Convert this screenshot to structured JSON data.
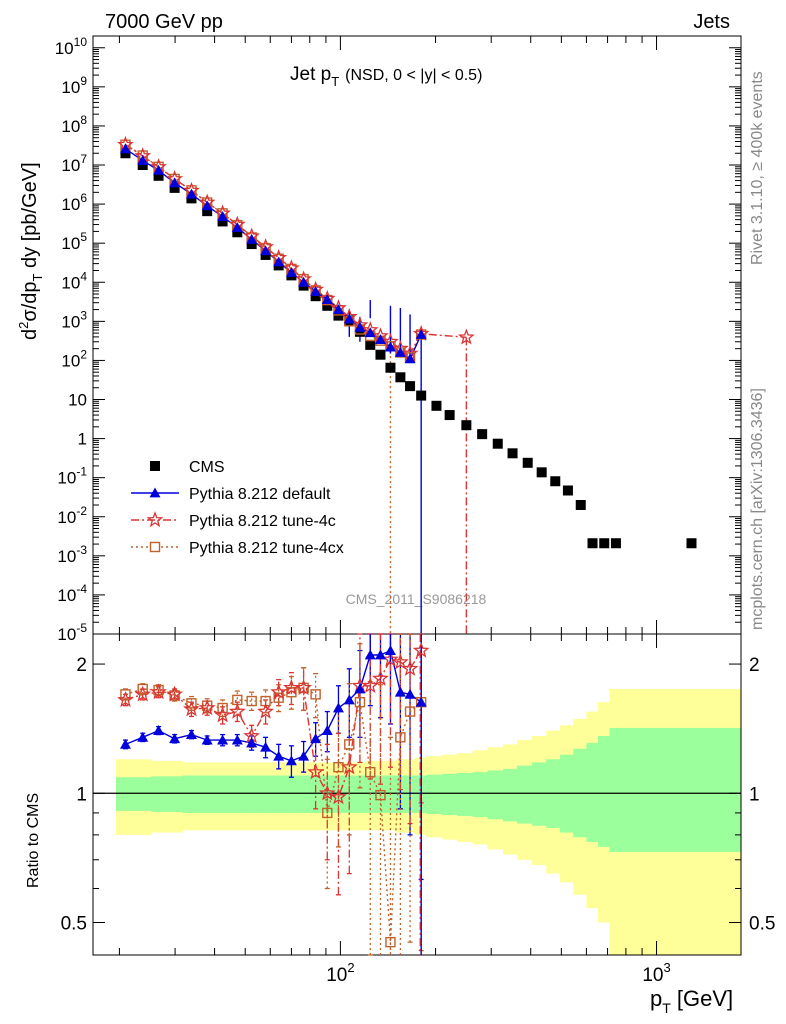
{
  "header": {
    "left": "7000 GeV pp",
    "right": "Jets"
  },
  "side_labels": {
    "rivet": "Rivet 3.1.10, ≥ 400k events",
    "mcplots": "mcplots.cern.ch [arXiv:1306.3436]"
  },
  "chart_data": [
    {
      "type": "scatter",
      "panel": "main",
      "title": "Jet p_T (NSD, 0 < |y| < 0.5)",
      "title_main": "Jet p",
      "title_sub": "T",
      "title_rest": "(NSD,   0 < |y| < 0.5)",
      "watermark": "CMS_2011_S9086218",
      "ylabel": "d²σ/dp_T dy [pb/GeV]",
      "xlabel": "p_T [GeV]",
      "xscale": "log",
      "yscale": "log",
      "xlim": [
        16.5,
        1850
      ],
      "ylim": [
        1e-05,
        20000000000.0
      ],
      "y_tick_labels": [
        "10^10",
        "10^9",
        "10^8",
        "10^7",
        "10^6",
        "10^5",
        "10^4",
        "10^3",
        "10^2",
        "10",
        "1",
        "10^-1",
        "10^-2",
        "10^-3",
        "10^-4",
        "10^-5"
      ],
      "x_tick_labels": [
        "10^2",
        "10^3"
      ],
      "legend_position": "lower-left",
      "series": [
        {
          "name": "CMS",
          "color": "#000000",
          "marker": "square",
          "x": [
            20.9,
            23.7,
            26.6,
            29.9,
            33.8,
            37.9,
            42.4,
            47.2,
            52.4,
            58.0,
            63.8,
            70.0,
            76.5,
            83.5,
            90.9,
            98.6,
            106.7,
            115.3,
            124.3,
            133.9,
            144.0,
            154.8,
            166.1,
            180.1,
            201.3,
            221.6,
            250.3,
            280.8,
            314.6,
            350.4,
            391.3,
            433.2,
            478.3,
            524.5,
            575.8,
            627.4,
            683.3,
            744.0,
            1290
          ],
          "y": [
            20000000.0,
            10000000.0,
            5300000.0,
            2600000.0,
            1400000.0,
            660000.0,
            360000.0,
            190000.0,
            95000.0,
            50000.0,
            27000.0,
            15000.0,
            8200.0,
            4400.0,
            2500.0,
            1400.0,
            1050.0,
            540.0,
            250.0,
            140.0,
            65.0,
            37.0,
            22.0,
            12.6,
            6.9,
            4.0,
            2.2,
            1.3,
            0.74,
            0.42,
            0.24,
            0.137,
            0.081,
            0.047,
            0.02,
            0.0021,
            0.0021,
            0.0021,
            0.0021
          ]
        },
        {
          "name": "Pythia 8.212 default",
          "color": "#0000dd",
          "marker": "triangle",
          "line": "solid",
          "x": [
            20.9,
            23.7,
            26.6,
            29.9,
            33.8,
            37.9,
            42.4,
            47.2,
            52.4,
            58.0,
            63.8,
            70.0,
            76.5,
            83.5,
            90.9,
            98.6,
            106.7,
            115.3,
            124.3,
            133.9,
            144.0,
            154.8,
            166.1,
            180.1
          ],
          "y": [
            26000000.0,
            13000000.0,
            7300000.0,
            3500000.0,
            1800000.0,
            900000.0,
            480000.0,
            250000.0,
            125000.0,
            64000.0,
            33000.0,
            17800.0,
            10000.0,
            5800.0,
            3600.0,
            2000.0,
            1150.0,
            700.0,
            510.0,
            340.0,
            220.0,
            160.0,
            110.0,
            460.0
          ],
          "yerr": [
            0,
            0,
            0,
            0,
            0,
            0,
            0,
            0,
            0,
            0,
            0,
            0,
            0,
            0,
            0,
            0,
            0,
            0,
            0,
            0,
            0,
            0,
            0,
            0
          ]
        },
        {
          "name": "Pythia 8.212 tune-4c",
          "color": "#dd3333",
          "marker": "star",
          "line": "dashdot",
          "x": [
            20.9,
            23.7,
            26.6,
            29.9,
            33.8,
            37.9,
            42.4,
            47.2,
            52.4,
            58.0,
            63.8,
            70.0,
            76.5,
            83.5,
            90.9,
            98.6,
            106.7,
            115.3,
            124.3,
            133.9,
            144.0,
            154.8,
            166.1,
            180.1,
            250.3
          ],
          "y": [
            33000000.0,
            17000000.0,
            8900000.0,
            4400000.0,
            2200000.0,
            1100000.0,
            580000.0,
            300000.0,
            150000.0,
            80000.0,
            42000.0,
            23000.0,
            12000.0,
            6500.0,
            3800.0,
            2200.0,
            1300.0,
            800.0,
            600.0,
            420.0,
            300.0,
            200.0,
            150.0,
            480.0,
            390.0
          ]
        },
        {
          "name": "Pythia 8.212 tune-4cx",
          "color": "#c0622a",
          "marker": "open-square",
          "line": "dotted",
          "x": [
            20.9,
            23.7,
            26.6,
            29.9,
            33.8,
            37.9,
            42.4,
            47.2,
            52.4,
            58.0,
            63.8,
            70.0,
            76.5,
            83.5,
            90.9,
            98.6,
            106.7,
            115.3,
            124.3,
            133.9,
            144.0,
            154.8,
            166.1,
            180.1
          ],
          "y": [
            33000000.0,
            17500000.0,
            9000000.0,
            4400000.0,
            2250000.0,
            1100000.0,
            580000.0,
            290000.0,
            140000.0,
            75000.0,
            40000.0,
            22000.0,
            12000.0,
            6200.0,
            3500.0,
            1900.0,
            1000.0,
            620.0,
            420.0,
            320.0,
            230.0,
            160.0,
            120.0,
            460.0
          ]
        }
      ]
    },
    {
      "type": "line",
      "panel": "ratio",
      "ylabel": "Ratio to CMS",
      "xlabel": "p_T [GeV]",
      "xscale": "log",
      "yscale": "log",
      "xlim": [
        16.5,
        1850
      ],
      "ylim": [
        0.42,
        2.35
      ],
      "y_tick_labels": [
        "2",
        "1",
        "0.5"
      ],
      "bands": {
        "x_edges": [
          19.5,
          22.3,
          25.2,
          28.2,
          31.6,
          35.8,
          40.0,
          44.8,
          49.7,
          55.1,
          60.8,
          66.9,
          73.2,
          79.9,
          87.2,
          94.7,
          102.6,
          110.9,
          119.7,
          129.0,
          138.9,
          149.2,
          160.3,
          172.0,
          187.0,
          210.0,
          234.0,
          262.0,
          292.0,
          327.0,
          362.0,
          404.0,
          448.0,
          495.0,
          545.0,
          600.0,
          653.0,
          710.0,
          782.0,
          1850.0
        ],
        "stat_lo": [
          0.91,
          0.91,
          0.905,
          0.905,
          0.9,
          0.9,
          0.9,
          0.9,
          0.9,
          0.9,
          0.9,
          0.9,
          0.9,
          0.9,
          0.9,
          0.9,
          0.9,
          0.9,
          0.9,
          0.9,
          0.9,
          0.9,
          0.9,
          0.9,
          0.895,
          0.89,
          0.885,
          0.88,
          0.87,
          0.86,
          0.85,
          0.84,
          0.83,
          0.81,
          0.79,
          0.77,
          0.75,
          0.73,
          0.73
        ],
        "stat_hi": [
          1.09,
          1.09,
          1.095,
          1.095,
          1.1,
          1.1,
          1.1,
          1.1,
          1.1,
          1.1,
          1.1,
          1.1,
          1.1,
          1.1,
          1.1,
          1.1,
          1.1,
          1.1,
          1.1,
          1.1,
          1.1,
          1.1,
          1.1,
          1.1,
          1.105,
          1.11,
          1.115,
          1.12,
          1.13,
          1.14,
          1.16,
          1.18,
          1.2,
          1.23,
          1.27,
          1.31,
          1.36,
          1.42,
          1.42
        ],
        "tot_lo": [
          0.8,
          0.8,
          0.81,
          0.81,
          0.82,
          0.82,
          0.82,
          0.82,
          0.82,
          0.82,
          0.82,
          0.82,
          0.82,
          0.82,
          0.82,
          0.82,
          0.82,
          0.82,
          0.82,
          0.82,
          0.82,
          0.81,
          0.81,
          0.8,
          0.79,
          0.78,
          0.77,
          0.76,
          0.74,
          0.72,
          0.7,
          0.68,
          0.65,
          0.62,
          0.58,
          0.54,
          0.5,
          0.42,
          0.42
        ],
        "tot_hi": [
          1.2,
          1.2,
          1.19,
          1.19,
          1.18,
          1.18,
          1.18,
          1.18,
          1.18,
          1.18,
          1.18,
          1.18,
          1.18,
          1.18,
          1.18,
          1.18,
          1.18,
          1.18,
          1.19,
          1.19,
          1.19,
          1.2,
          1.2,
          1.21,
          1.22,
          1.23,
          1.24,
          1.26,
          1.28,
          1.3,
          1.33,
          1.36,
          1.4,
          1.44,
          1.49,
          1.55,
          1.63,
          1.75,
          1.75
        ]
      },
      "series": [
        {
          "name": "Pythia 8.212 default",
          "color": "#0000dd",
          "x": [
            20.9,
            23.7,
            26.6,
            29.9,
            33.8,
            37.9,
            42.4,
            47.2,
            52.4,
            58.0,
            63.8,
            70.0,
            76.5,
            83.5,
            90.9,
            98.6,
            106.7,
            115.3,
            124.3,
            133.9,
            144.0,
            154.8,
            166.1,
            180.1
          ],
          "y": [
            1.3,
            1.35,
            1.4,
            1.34,
            1.37,
            1.33,
            1.33,
            1.33,
            1.31,
            1.28,
            1.22,
            1.19,
            1.22,
            1.34,
            1.4,
            1.58,
            1.65,
            1.75,
            2.1,
            2.1,
            2.15,
            1.72,
            1.7,
            1.63
          ],
          "yerr": [
            0.03,
            0.03,
            0.03,
            0.03,
            0.03,
            0.03,
            0.04,
            0.04,
            0.05,
            0.07,
            0.08,
            0.1,
            0.1,
            0.12,
            0.15,
            0.2,
            0.3,
            0.4,
            0.5,
            0.6,
            0.7,
            0.8,
            0.9,
            1.0
          ]
        },
        {
          "name": "Pythia 8.212 tune-4c",
          "color": "#dd3333",
          "x": [
            20.9,
            23.7,
            26.6,
            29.9,
            33.8,
            37.9,
            42.4,
            47.2,
            52.4,
            58.0,
            63.8,
            70.0,
            76.5,
            83.5,
            90.9,
            98.6,
            106.7,
            115.3,
            124.3,
            133.9,
            144.0,
            154.8,
            166.1,
            180.1
          ],
          "y": [
            1.65,
            1.7,
            1.72,
            1.7,
            1.57,
            1.58,
            1.52,
            1.55,
            1.36,
            1.55,
            1.72,
            1.76,
            1.76,
            1.12,
            1.0,
            0.98,
            1.15,
            1.78,
            1.78,
            1.85,
            2.05,
            2.02,
            1.95,
            2.15
          ],
          "yerr": [
            0.05,
            0.05,
            0.05,
            0.05,
            0.06,
            0.06,
            0.07,
            0.08,
            0.08,
            0.1,
            0.12,
            0.15,
            0.2,
            0.2,
            0.3,
            0.4,
            0.5,
            0.6,
            0.7,
            0.8,
            0.9,
            1.0,
            1.1,
            1.2
          ]
        },
        {
          "name": "Pythia 8.212 tune-4cx",
          "color": "#c0622a",
          "x": [
            20.9,
            23.7,
            26.6,
            29.9,
            33.8,
            37.9,
            42.4,
            47.2,
            52.4,
            58.0,
            63.8,
            70.0,
            76.5,
            83.5,
            90.9,
            98.6,
            106.7,
            115.3,
            124.3,
            133.9,
            144.0,
            154.8,
            166.1,
            180.1
          ],
          "y": [
            1.7,
            1.75,
            1.74,
            1.69,
            1.62,
            1.6,
            1.58,
            1.65,
            1.64,
            1.64,
            1.67,
            1.72,
            1.76,
            1.7,
            0.9,
            1.15,
            1.3,
            1.63,
            1.12,
            0.99,
            0.45,
            1.35,
            1.55,
            1.63
          ],
          "yerr": [
            0.05,
            0.05,
            0.05,
            0.05,
            0.06,
            0.06,
            0.07,
            0.08,
            0.08,
            0.1,
            0.12,
            0.15,
            0.2,
            0.2,
            0.3,
            0.4,
            0.5,
            0.6,
            0.7,
            0.8,
            0.9,
            1.0,
            1.1,
            1.2
          ]
        }
      ]
    }
  ],
  "legend": {
    "cms": "CMS",
    "default": "Pythia 8.212 default",
    "tune4c": "Pythia 8.212 tune-4c",
    "tune4cx": "Pythia 8.212 tune-4cx"
  },
  "colors": {
    "stat_band": "#9bff9b",
    "tot_band": "#ffff99"
  }
}
